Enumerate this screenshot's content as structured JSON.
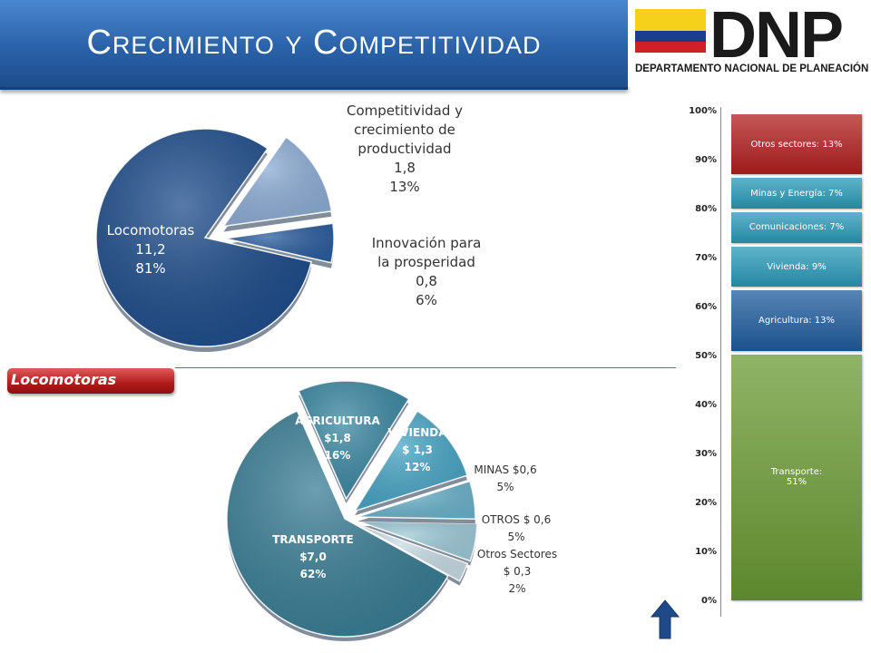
{
  "title": "Crecimiento y Competitividad",
  "logo": {
    "name": "DNP",
    "subtitle": "DEPARTAMENTO NACIONAL DE PLANEACIÓN",
    "flag_colors": [
      "#f6d11b",
      "#1f3b8e",
      "#cf2027"
    ]
  },
  "top_pie": {
    "slices": [
      {
        "lines": [
          "Locomotoras",
          "11,2",
          "81%"
        ],
        "value": 11.2,
        "percent": 81,
        "color": "#1f4e8c"
      },
      {
        "lines": [
          "Competitividad y",
          "crecimiento de",
          "productividad",
          "1,8",
          "13%"
        ],
        "value": 1.8,
        "percent": 13,
        "color": "#8eaed6"
      },
      {
        "lines": [
          "Innovación para",
          "la prosperidad",
          "0,8",
          "6%"
        ],
        "value": 0.8,
        "percent": 6,
        "color": "#2d5fa0"
      }
    ]
  },
  "section_tag": "Locomotoras",
  "bottom_pie": {
    "slices": [
      {
        "lines": [
          "TRANSPORTE",
          "$7,0",
          "62%"
        ],
        "value": 7.0,
        "percent": 62,
        "color": "#3b7f96"
      },
      {
        "lines": [
          "AGRICULTURA",
          "$1,8",
          "16%"
        ],
        "value": 1.8,
        "percent": 16,
        "color": "#3e8aa4"
      },
      {
        "lines": [
          "VIVIENDA",
          "$ 1,3",
          "12%"
        ],
        "value": 1.3,
        "percent": 12,
        "color": "#4aa6c6"
      },
      {
        "lines": [
          "MINAS $0,6",
          "5%"
        ],
        "value": 0.6,
        "percent": 5,
        "color": "#6db4cc"
      },
      {
        "lines": [
          "OTROS $ 0,6",
          "5%"
        ],
        "value": 0.6,
        "percent": 5,
        "color": "#9fcbd9"
      },
      {
        "lines": [
          "Otros Sectores",
          "$ 0,3",
          "2%"
        ],
        "value": 0.3,
        "percent": 2,
        "color": "#c9dde6"
      }
    ]
  },
  "stacked_bar": {
    "ticks": [
      "0%",
      "10%",
      "20%",
      "30%",
      "40%",
      "50%",
      "60%",
      "70%",
      "80%",
      "90%",
      "100%"
    ],
    "segments": [
      {
        "label": "Transporte:\n51%",
        "percent": 51,
        "color": "#6a9a33"
      },
      {
        "label": "Agricultura: 13%",
        "percent": 13,
        "color": "#1f5c9e"
      },
      {
        "label": "Vivienda: 9%",
        "percent": 9,
        "color": "#2a9ab8"
      },
      {
        "label": "Comunicaciones: 7%",
        "percent": 7,
        "color": "#2a9ab8"
      },
      {
        "label": "Minas y Energía: 7%",
        "percent": 7,
        "color": "#2a9ab8"
      },
      {
        "label": "Otros sectores: 13%",
        "percent": 13,
        "color": "#b21f1f"
      }
    ]
  },
  "nav": {
    "icon": "up-arrow-icon"
  }
}
